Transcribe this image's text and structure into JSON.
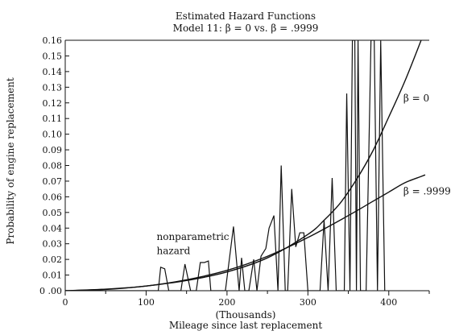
{
  "chart_data": {
    "type": "line",
    "title": "Estimated Hazard Functions",
    "subtitle": "Model 11: β = 0 vs. β = .9999",
    "xlabel_units": "(Thousands)",
    "xlabel": "Mileage since last replacement",
    "ylabel": "Probability of engine replacement",
    "xlim": [
      0,
      450
    ],
    "ylim": [
      0,
      0.16
    ],
    "x_ticks": [
      0,
      100,
      200,
      300,
      400
    ],
    "x_tick_labels": [
      "0",
      "100",
      "200",
      "300",
      "400"
    ],
    "y_ticks": [
      0,
      0.01,
      0.02,
      0.03,
      0.04,
      0.05,
      0.06,
      0.07,
      0.08,
      0.09,
      0.1,
      0.11,
      0.12,
      0.13,
      0.14,
      0.15,
      0.16
    ],
    "y_tick_labels": [
      "0 .00",
      "0.01",
      "0.02",
      "0.03",
      "0.04",
      "0.05",
      "0.06",
      "0.07",
      "0.08",
      "0.09",
      "0.10",
      "0.11",
      "0.12",
      "0.13",
      "0.14",
      "0.15",
      "0.16"
    ],
    "grid": false,
    "series": [
      {
        "name": "β = 0",
        "x": [
          0,
          50,
          100,
          150,
          200,
          250,
          300,
          320,
          340,
          360,
          380,
          400,
          420,
          440
        ],
        "y": [
          0.0,
          0.0008,
          0.003,
          0.0065,
          0.012,
          0.021,
          0.036,
          0.045,
          0.056,
          0.071,
          0.089,
          0.111,
          0.134,
          0.16
        ]
      },
      {
        "name": "β = .9999",
        "x": [
          0,
          50,
          100,
          150,
          200,
          250,
          300,
          350,
          380,
          400,
          420,
          440,
          445
        ],
        "y": [
          0.0,
          0.001,
          0.003,
          0.007,
          0.013,
          0.022,
          0.034,
          0.048,
          0.057,
          0.063,
          0.069,
          0.073,
          0.074
        ]
      },
      {
        "name": "nonparametric hazard",
        "x": [
          0,
          115,
          118,
          123,
          128,
          143,
          148,
          155,
          162,
          167,
          172,
          177,
          180,
          198,
          208,
          215,
          218,
          222,
          227,
          233,
          237,
          242,
          248,
          252,
          258,
          263,
          267,
          272,
          275,
          280,
          285,
          290,
          295,
          300,
          305,
          315,
          320,
          325,
          330,
          335,
          345,
          348,
          352,
          355,
          358,
          360,
          362,
          365,
          372,
          378,
          382,
          386,
          390,
          395
        ],
        "y": [
          0.0,
          0.0,
          0.015,
          0.014,
          0.0,
          0.0,
          0.017,
          0.0,
          0.0,
          0.018,
          0.018,
          0.019,
          0.0,
          0.0,
          0.041,
          0.0,
          0.021,
          0.0,
          0.0,
          0.02,
          0.0,
          0.022,
          0.027,
          0.04,
          0.048,
          0.0,
          0.08,
          0.0,
          0.0,
          0.065,
          0.028,
          0.037,
          0.037,
          0.0,
          0.0,
          0.0,
          0.045,
          0.0,
          0.072,
          0.0,
          0.0,
          0.126,
          0.0,
          0.16,
          0.16,
          0.0,
          0.16,
          0.0,
          0.0,
          0.16,
          0.16,
          0.0,
          0.16,
          0.0
        ]
      }
    ],
    "annotations": [
      {
        "text": "β = 0",
        "x": 418,
        "y": 0.121
      },
      {
        "text": "β = .9999",
        "x": 418,
        "y": 0.0615
      },
      {
        "text": "nonparametric",
        "x": 113,
        "y": 0.0325
      },
      {
        "text": "hazard",
        "x": 113,
        "y": 0.0235
      }
    ]
  }
}
